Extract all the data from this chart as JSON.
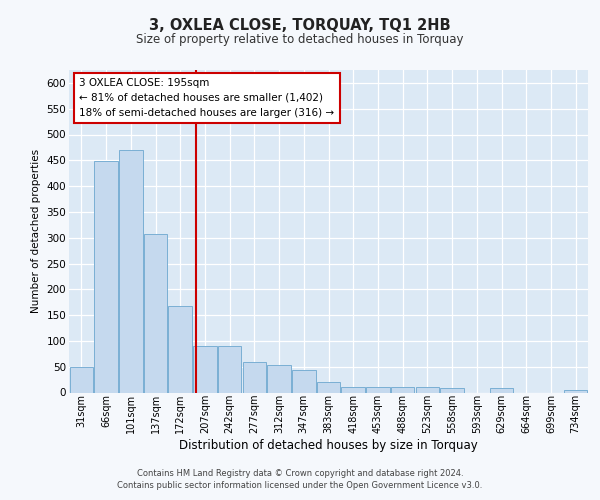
{
  "title": "3, OXLEA CLOSE, TORQUAY, TQ1 2HB",
  "subtitle": "Size of property relative to detached houses in Torquay",
  "xlabel": "Distribution of detached houses by size in Torquay",
  "ylabel": "Number of detached properties",
  "categories": [
    "31sqm",
    "66sqm",
    "101sqm",
    "137sqm",
    "172sqm",
    "207sqm",
    "242sqm",
    "277sqm",
    "312sqm",
    "347sqm",
    "383sqm",
    "418sqm",
    "453sqm",
    "488sqm",
    "523sqm",
    "558sqm",
    "593sqm",
    "629sqm",
    "664sqm",
    "699sqm",
    "734sqm"
  ],
  "values": [
    50,
    448,
    470,
    308,
    168,
    90,
    90,
    60,
    53,
    44,
    20,
    10,
    10,
    10,
    10,
    8,
    0,
    8,
    0,
    0,
    5
  ],
  "bar_color": "#c5d9ee",
  "bar_edge_color": "#7aafd4",
  "plot_bg_color": "#dce9f5",
  "grid_color": "#ffffff",
  "fig_bg_color": "#f5f8fc",
  "ylim": [
    0,
    625
  ],
  "yticks": [
    0,
    50,
    100,
    150,
    200,
    250,
    300,
    350,
    400,
    450,
    500,
    550,
    600
  ],
  "annotation_line1": "3 OXLEA CLOSE: 195sqm",
  "annotation_line2": "← 81% of detached houses are smaller (1,402)",
  "annotation_line3": "18% of semi-detached houses are larger (316) →",
  "red_color": "#cc0000",
  "footer_line1": "Contains HM Land Registry data © Crown copyright and database right 2024.",
  "footer_line2": "Contains public sector information licensed under the Open Government Licence v3.0."
}
